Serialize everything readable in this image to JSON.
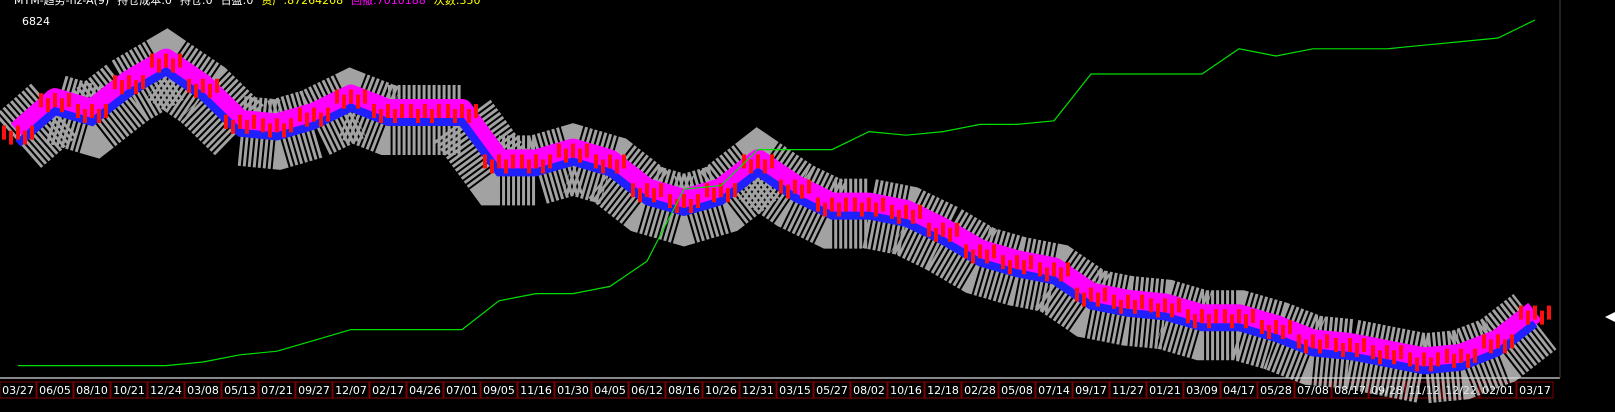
{
  "chart_data": {
    "type": "line",
    "header": [
      "MTM-趋势-hz-A(9)",
      "持仓成本:0",
      "持仓:0",
      "日盈:0",
      "资产:87264208",
      "回撤:7010188",
      "次数:350"
    ],
    "price_label": "6824",
    "categories": [
      "03/27",
      "06/05",
      "08/10",
      "10/21",
      "12/24",
      "03/08",
      "05/13",
      "07/21",
      "09/27",
      "12/07",
      "02/17",
      "04/26",
      "07/01",
      "09/05",
      "11/16",
      "01/30",
      "04/05",
      "06/12",
      "08/16",
      "10/26",
      "12/31",
      "03/15",
      "05/27",
      "08/02",
      "10/16",
      "12/18",
      "02/28",
      "05/08",
      "07/14",
      "09/17",
      "11/27",
      "01/21",
      "03/09",
      "04/17",
      "05/28",
      "07/08",
      "08/17",
      "09/28",
      "11/12",
      "12/22",
      "02/01",
      "03/17"
    ],
    "series": [
      {
        "name": "price",
        "color": "#ff00ff",
        "values": [
          69,
          78,
          75,
          83,
          89,
          82,
          72,
          71,
          74,
          79,
          75,
          75,
          75,
          61,
          61,
          64,
          61,
          53,
          50,
          53,
          61,
          54,
          49,
          49,
          47,
          42,
          36,
          33,
          31,
          24,
          22,
          21,
          18,
          18,
          15,
          11,
          10,
          8,
          6,
          7,
          11,
          19
        ]
      },
      {
        "name": "equity",
        "color": "#00e000",
        "values": [
          4,
          4,
          4,
          4,
          4,
          5,
          7,
          8,
          11,
          14,
          14,
          14,
          14,
          22,
          24,
          24,
          26,
          33,
          53,
          54,
          64,
          64,
          64,
          69,
          68,
          69,
          71,
          71,
          72,
          85,
          85,
          85,
          85,
          92,
          90,
          92,
          92,
          92,
          93,
          94,
          95,
          100
        ]
      }
    ],
    "ylim": [
      0,
      100
    ]
  }
}
